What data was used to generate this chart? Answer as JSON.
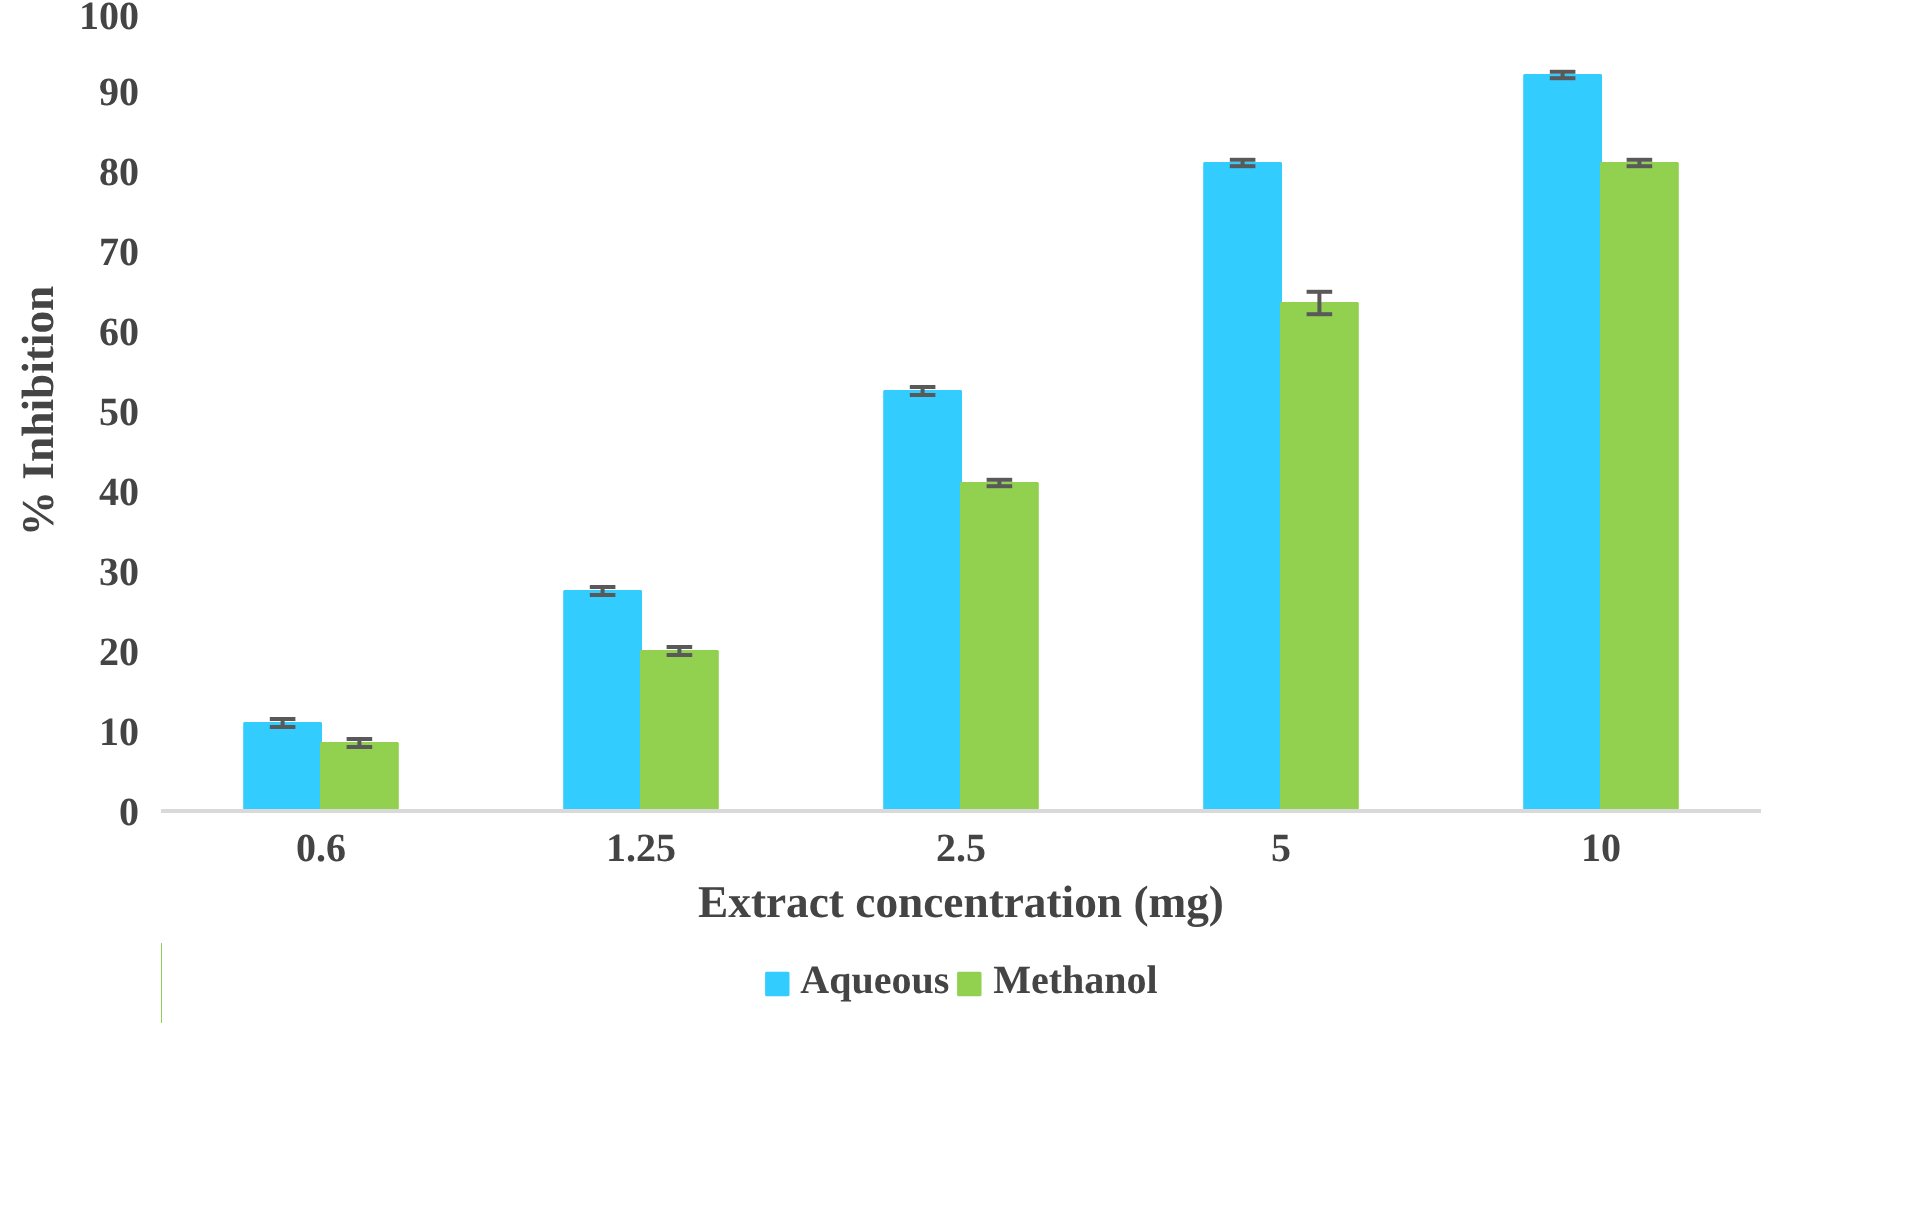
{
  "chart_data": {
    "type": "bar",
    "xlabel": "Extract concentration (mg)",
    "ylabel": "% Inhibition",
    "categories": [
      "0.6",
      "1.25",
      "2.5",
      "5",
      "10"
    ],
    "series": [
      {
        "name": "Aqueous",
        "color": "#33ccff",
        "values": [
          11,
          27.5,
          52.5,
          81,
          92
        ],
        "errors": [
          0.5,
          0.5,
          0.5,
          0.4,
          0.4
        ]
      },
      {
        "name": "Methanol",
        "color": "#92d050",
        "values": [
          8.5,
          20,
          41,
          63.5,
          81
        ],
        "errors": [
          0.5,
          0.5,
          0.4,
          1.4,
          0.4
        ]
      }
    ],
    "ylim": [
      0,
      100
    ],
    "yticks": [
      0,
      10,
      20,
      30,
      40,
      50,
      60,
      70,
      80,
      90,
      100
    ],
    "grid": false,
    "legend": "bottom"
  }
}
